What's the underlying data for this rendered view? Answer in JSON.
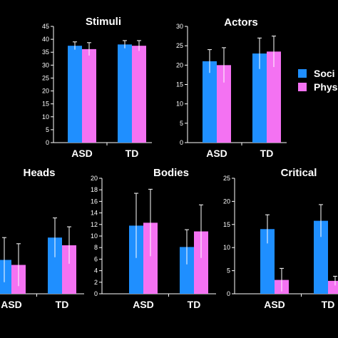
{
  "colors": {
    "background": "#000000",
    "social": "#1f8fff",
    "physical": "#f472f2",
    "text": "#ffffff"
  },
  "legend": {
    "entries": [
      "Soci",
      "Phys"
    ]
  },
  "chart_data": [
    {
      "type": "bar",
      "title": "Stimuli",
      "categories": [
        "ASD",
        "TD"
      ],
      "ylim": [
        0,
        45
      ],
      "yticks": [
        0,
        5,
        10,
        15,
        20,
        25,
        30,
        35,
        40,
        45
      ],
      "series": [
        {
          "values": [
            37.5,
            38
          ],
          "errors": [
            1.5,
            1.5
          ]
        },
        {
          "values": [
            36.2,
            37.5
          ],
          "errors": [
            2.5,
            2
          ]
        }
      ]
    },
    {
      "type": "bar",
      "title": "Actors",
      "categories": [
        "ASD",
        "TD"
      ],
      "ylim": [
        0,
        30
      ],
      "yticks": [
        0,
        5,
        10,
        15,
        20,
        25,
        30
      ],
      "series": [
        {
          "values": [
            21,
            23
          ],
          "errors": [
            3,
            4
          ]
        },
        {
          "values": [
            20,
            23.5
          ],
          "errors": [
            4.5,
            4
          ]
        }
      ]
    },
    {
      "type": "bar",
      "title": "Heads",
      "categories": [
        "ASD",
        "TD"
      ],
      "ylim": [
        0,
        30
      ],
      "yticks": [],
      "series": [
        {
          "values": [
            8.8,
            14.6
          ],
          "errors": [
            5.8,
            5.1
          ]
        },
        {
          "values": [
            7.5,
            12.6
          ],
          "errors": [
            5.5,
            4.8
          ]
        }
      ]
    },
    {
      "type": "bar",
      "title": "Bodies",
      "categories": [
        "ASD",
        "TD"
      ],
      "ylim": [
        0,
        20
      ],
      "yticks": [
        0,
        2,
        4,
        6,
        8,
        10,
        12,
        14,
        16,
        18,
        20
      ],
      "series": [
        {
          "values": [
            11.8,
            8.1
          ],
          "errors": [
            5.6,
            3
          ]
        },
        {
          "values": [
            12.3,
            10.8
          ],
          "errors": [
            5.8,
            4.6
          ]
        }
      ]
    },
    {
      "type": "bar",
      "title": "Critical",
      "categories": [
        "ASD",
        "TD"
      ],
      "ylim": [
        0,
        25
      ],
      "yticks": [
        0,
        5,
        10,
        15,
        20,
        25
      ],
      "series": [
        {
          "values": [
            14,
            15.8
          ],
          "errors": [
            3.1,
            3.5
          ]
        },
        {
          "values": [
            3,
            2.8
          ],
          "errors": [
            2.5,
            1
          ]
        }
      ]
    }
  ]
}
